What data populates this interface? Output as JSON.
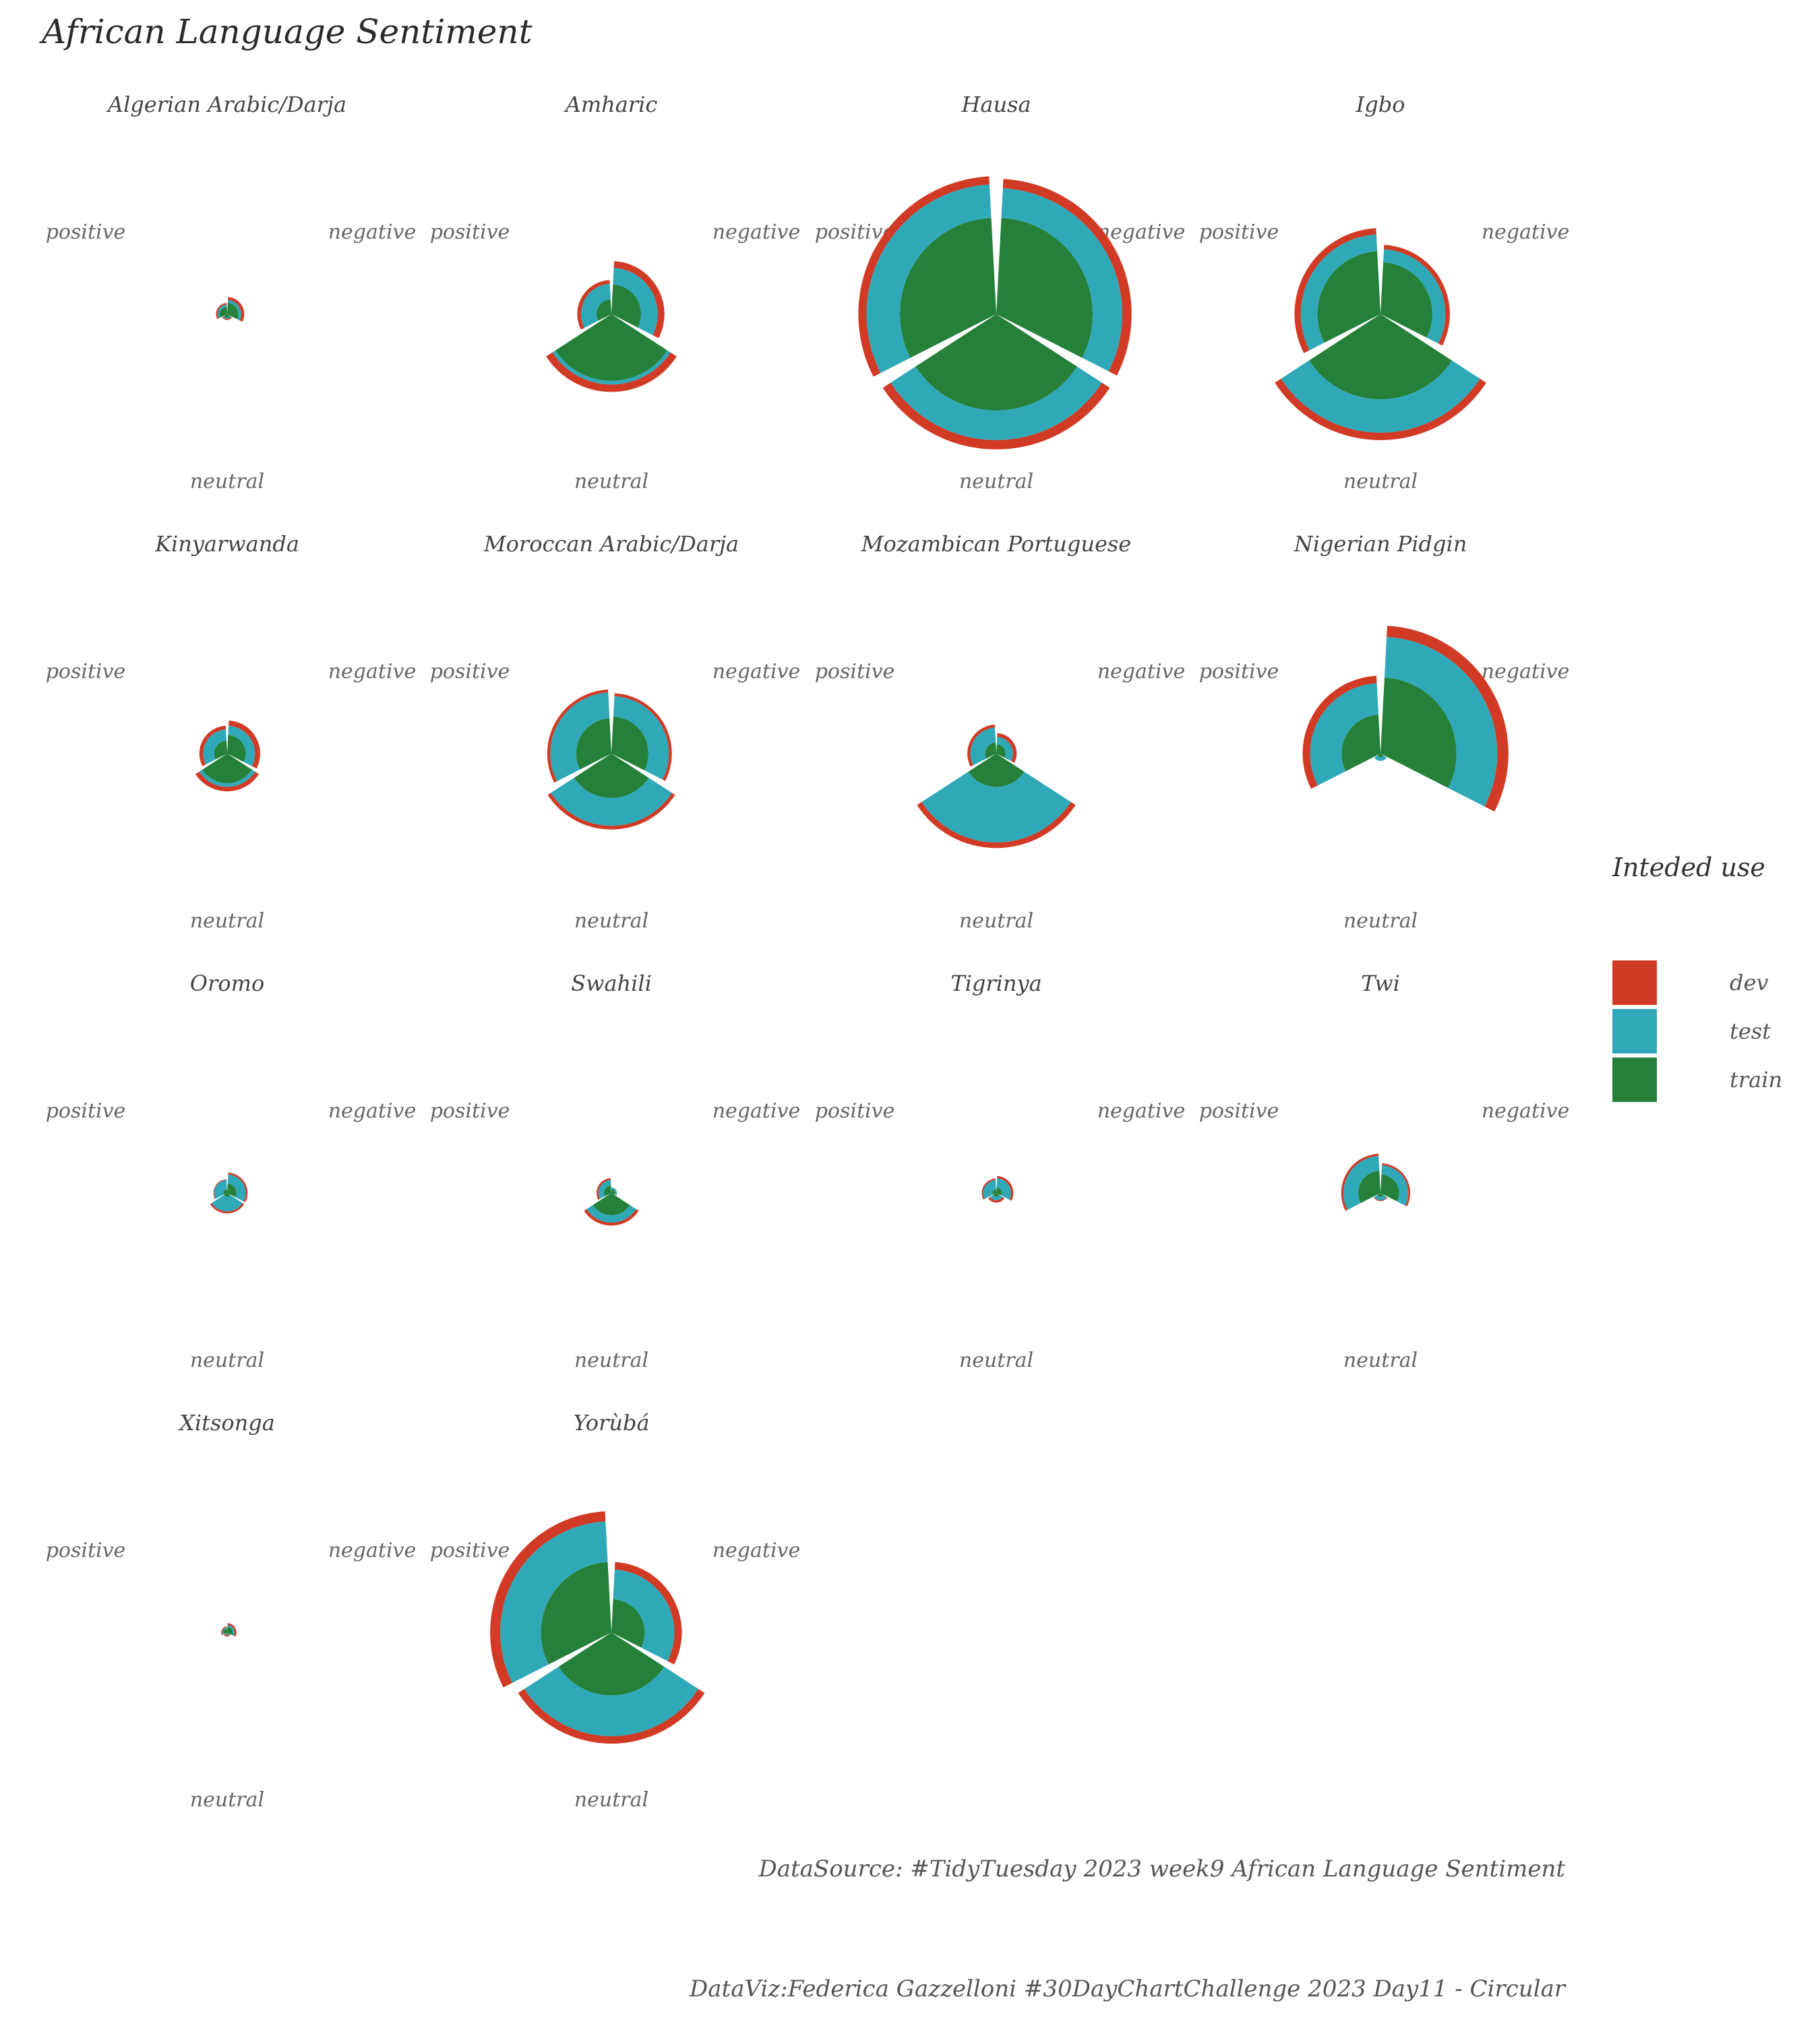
{
  "title": "African Language Sentiment",
  "caption_source": "DataSource: #TidyTuesday 2023 week9 African Language Sentiment",
  "caption_author": "DataViz:Federica Gazzelloni #30DayChartChallenge 2023 Day11 - Circular",
  "legend": {
    "title": "Inteded use",
    "items": [
      {
        "label": "dev",
        "color": "#d13a24"
      },
      {
        "label": "test",
        "color": "#2fa8b8"
      },
      {
        "label": "train",
        "color": "#258039"
      }
    ]
  },
  "chart_data": {
    "type": "polar-bar",
    "sentiments": [
      "positive",
      "negative",
      "neutral"
    ],
    "stack_order": [
      "train",
      "test",
      "dev"
    ],
    "value_note": "stacked radial extents read off the relative wedge sizes",
    "facets": [
      {
        "name": "Algerian Arabic/Darja",
        "values": {
          "positive": {
            "train": 20,
            "test": 6,
            "dev": 4
          },
          "negative": {
            "train": 30,
            "test": 8,
            "dev": 8
          },
          "neutral": {
            "train": 10,
            "test": 3,
            "dev": 3
          }
        }
      },
      {
        "name": "Amharic",
        "values": {
          "positive": {
            "train": 40,
            "test": 42,
            "dev": 10
          },
          "negative": {
            "train": 80,
            "test": 45,
            "dev": 18
          },
          "neutral": {
            "train": 180,
            "test": 10,
            "dev": 20
          }
        }
      },
      {
        "name": "Hausa",
        "values": {
          "positive": {
            "train": 260,
            "test": 90,
            "dev": 22
          },
          "negative": {
            "train": 260,
            "test": 80,
            "dev": 25
          },
          "neutral": {
            "train": 260,
            "test": 80,
            "dev": 25
          }
        }
      },
      {
        "name": "Igbo",
        "values": {
          "positive": {
            "train": 170,
            "test": 45,
            "dev": 17
          },
          "negative": {
            "train": 140,
            "test": 35,
            "dev": 12
          },
          "neutral": {
            "train": 230,
            "test": 90,
            "dev": 20
          }
        }
      },
      {
        "name": "Kinyarwanda",
        "values": {
          "positive": {
            "train": 35,
            "test": 30,
            "dev": 10
          },
          "negative": {
            "train": 50,
            "test": 25,
            "dev": 14
          },
          "neutral": {
            "train": 80,
            "test": 10,
            "dev": 12
          }
        }
      },
      {
        "name": "Moroccan Arabic/Darja",
        "values": {
          "positive": {
            "train": 95,
            "test": 70,
            "dev": 8
          },
          "negative": {
            "train": 100,
            "test": 55,
            "dev": 8
          },
          "neutral": {
            "train": 120,
            "test": 75,
            "dev": 10
          }
        }
      },
      {
        "name": "Mozambican Portuguese",
        "values": {
          "positive": {
            "train": 30,
            "test": 40,
            "dev": 8
          },
          "negative": {
            "train": 25,
            "test": 20,
            "dev": 10
          },
          "neutral": {
            "train": 90,
            "test": 150,
            "dev": 15
          }
        }
      },
      {
        "name": "Nigerian Pidgin",
        "values": {
          "positive": {
            "train": 105,
            "test": 85,
            "dev": 20
          },
          "negative": {
            "train": 205,
            "test": 110,
            "dev": 30
          },
          "neutral": {
            "train": 10,
            "test": 10,
            "dev": 0
          }
        }
      },
      {
        "name": "Oromo",
        "values": {
          "positive": {
            "train": 10,
            "test": 25,
            "dev": 2
          },
          "negative": {
            "train": 25,
            "test": 25,
            "dev": 5
          },
          "neutral": {
            "train": 10,
            "test": 40,
            "dev": 5
          }
        }
      },
      {
        "name": "Swahili",
        "values": {
          "positive": {
            "train": 20,
            "test": 15,
            "dev": 5
          },
          "negative": {
            "train": 10,
            "test": 5,
            "dev": 0
          },
          "neutral": {
            "train": 60,
            "test": 20,
            "dev": 8
          }
        }
      },
      {
        "name": "Tigrinya",
        "values": {
          "positive": {
            "train": 10,
            "test": 25,
            "dev": 4
          },
          "negative": {
            "train": 15,
            "test": 25,
            "dev": 6
          },
          "neutral": {
            "train": 10,
            "test": 10,
            "dev": 6
          }
        }
      },
      {
        "name": "Twi",
        "values": {
          "positive": {
            "train": 60,
            "test": 40,
            "dev": 6
          },
          "negative": {
            "train": 50,
            "test": 25,
            "dev": 5
          },
          "neutral": {
            "train": 10,
            "test": 10,
            "dev": 2
          }
        }
      },
      {
        "name": "Xitsonga",
        "values": {
          "positive": {
            "train": 10,
            "test": 3,
            "dev": 3
          },
          "negative": {
            "train": 15,
            "test": 5,
            "dev": 5
          },
          "neutral": {
            "train": 5,
            "test": 3,
            "dev": 3
          }
        }
      },
      {
        "name": "Yorùbá",
        "values": {
          "positive": {
            "train": 190,
            "test": 110,
            "dev": 27
          },
          "negative": {
            "train": 90,
            "test": 80,
            "dev": 20
          },
          "neutral": {
            "train": 170,
            "test": 110,
            "dev": 20
          }
        }
      }
    ]
  }
}
